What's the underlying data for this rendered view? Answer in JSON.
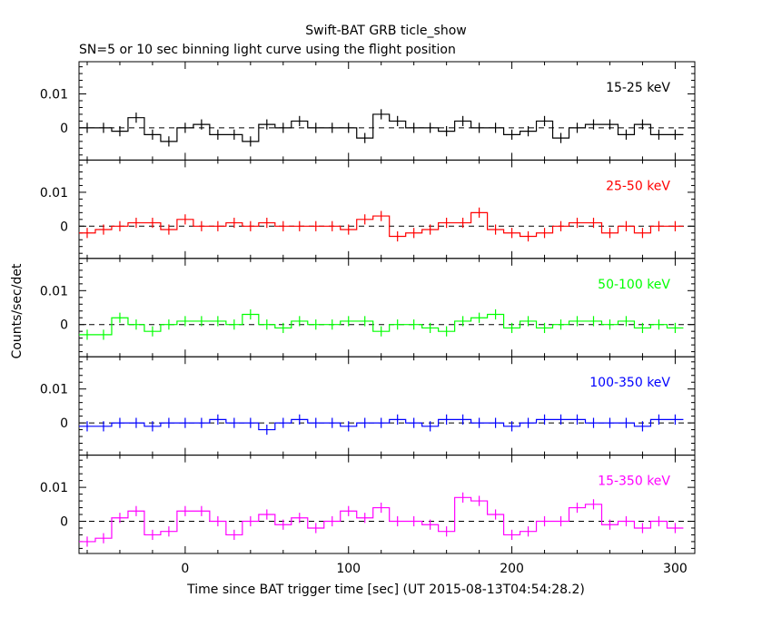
{
  "chart_data": {
    "type": "line",
    "title": "Swift-BAT GRB ticle_show",
    "subtitle": "SN=5 or 10 sec binning light curve using the flight position",
    "xlabel": "Time since BAT trigger time [sec] (UT 2015-08-13T04:54:28.2)",
    "ylabel": "Counts/sec/det",
    "xlim": [
      -65,
      312
    ],
    "ylim": [
      -0.0095,
      0.0195
    ],
    "x_ticks": [
      "0",
      "100",
      "200",
      "300"
    ],
    "y_ticks": [
      "0",
      "0.01"
    ],
    "bin_width": 10,
    "x": [
      -60,
      -50,
      -40,
      -30,
      -20,
      -10,
      0,
      10,
      20,
      30,
      40,
      50,
      60,
      70,
      80,
      90,
      100,
      110,
      120,
      130,
      140,
      150,
      160,
      170,
      180,
      190,
      200,
      210,
      220,
      230,
      240,
      250,
      260,
      270,
      280,
      290,
      300
    ],
    "series": [
      {
        "name": "15-25 keV",
        "color": "#000000",
        "values": [
          0,
          0,
          -0.001,
          0.003,
          -0.002,
          -0.004,
          0,
          0.001,
          -0.002,
          -0.002,
          -0.004,
          0.001,
          0,
          0.002,
          0,
          0,
          0,
          -0.003,
          0.004,
          0.002,
          0,
          0,
          -0.001,
          0.002,
          0,
          0,
          -0.002,
          -0.001,
          0.002,
          -0.003,
          0,
          0.001,
          0.001,
          -0.002,
          0.001,
          -0.002,
          -0.002
        ]
      },
      {
        "name": "25-50 keV",
        "color": "#ff0000",
        "values": [
          -0.002,
          -0.001,
          0,
          0.001,
          0.001,
          -0.001,
          0.002,
          0,
          0,
          0.001,
          0,
          0.001,
          0,
          0,
          0,
          0,
          -0.001,
          0.002,
          0.003,
          -0.003,
          -0.002,
          -0.001,
          0.001,
          0.001,
          0.004,
          -0.001,
          -0.002,
          -0.003,
          -0.002,
          0,
          0.001,
          0.001,
          -0.002,
          0,
          -0.002,
          0,
          0
        ]
      },
      {
        "name": "50-100 keV",
        "color": "#00ff00",
        "values": [
          -0.003,
          -0.003,
          0.002,
          0,
          -0.002,
          0,
          0.001,
          0.001,
          0.001,
          0,
          0.003,
          0,
          -0.001,
          0.001,
          0,
          0,
          0.001,
          0.001,
          -0.002,
          0,
          0,
          -0.001,
          -0.002,
          0.001,
          0.002,
          0.003,
          -0.001,
          0.001,
          -0.001,
          0,
          0.001,
          0.001,
          0,
          0.001,
          -0.001,
          0,
          -0.001
        ]
      },
      {
        "name": "100-350 keV",
        "color": "#0000ff",
        "values": [
          -0.001,
          -0.001,
          0,
          0,
          -0.001,
          0,
          0,
          0,
          0.001,
          0,
          0,
          -0.002,
          0,
          0.001,
          0,
          0,
          -0.001,
          0,
          0,
          0.001,
          0,
          -0.001,
          0.001,
          0.001,
          0,
          0,
          -0.001,
          0,
          0.001,
          0.001,
          0.001,
          0,
          0,
          0,
          -0.001,
          0.001,
          0.001
        ]
      },
      {
        "name": "15-350 keV",
        "color": "#ff00ff",
        "values": [
          -0.006,
          -0.005,
          0.001,
          0.003,
          -0.004,
          -0.003,
          0.003,
          0.003,
          0,
          -0.004,
          0,
          0.002,
          -0.001,
          0.001,
          -0.002,
          0,
          0.003,
          0.001,
          0.004,
          0,
          0,
          -0.001,
          -0.003,
          0.007,
          0.006,
          0.002,
          -0.004,
          -0.003,
          0,
          0,
          0.004,
          0.005,
          -0.001,
          0,
          -0.002,
          0,
          -0.002
        ]
      }
    ]
  }
}
